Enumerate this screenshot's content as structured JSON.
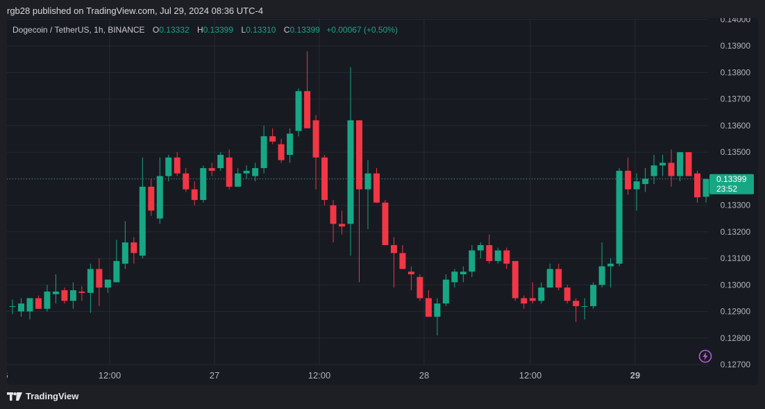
{
  "header": {
    "published_text": "rgb28 published on TradingView.com, Jul 29, 2024 08:36 UTC-4"
  },
  "legend": {
    "symbol": "Dogecoin / TetherUS, 1h, BINANCE",
    "open_label": "O",
    "open": "0.13332",
    "high_label": "H",
    "high": "0.13399",
    "low_label": "L",
    "low": "0.13310",
    "close_label": "C",
    "close": "0.13399",
    "change": "+0.00067 (+0.50%)"
  },
  "footer": {
    "brand": "TradingView"
  },
  "price_badge": {
    "price": "0.13399",
    "countdown": "23:52"
  },
  "colors": {
    "up": "#17a784",
    "down": "#f23645",
    "background": "#181a21",
    "grid": "#262933"
  },
  "icons": [
    "tradingview-logo-icon",
    "lightning-icon"
  ],
  "chart_data": {
    "type": "candlestick",
    "ylim": [
      0.127,
      0.14
    ],
    "y_ticks": [
      "0.12700",
      "0.12800",
      "0.12900",
      "0.13000",
      "0.13100",
      "0.13200",
      "0.13300",
      "0.13400",
      "0.13500",
      "0.13600",
      "0.13700",
      "0.13800",
      "0.13900",
      "0.14000"
    ],
    "x_labels": [
      "6",
      "12:00",
      "27",
      "12:00",
      "28",
      "12:00",
      "29"
    ],
    "current_price": 0.13399,
    "candles": [
      {
        "o": 0.1292,
        "h": 0.12945,
        "l": 0.1289,
        "c": 0.1292
      },
      {
        "o": 0.129,
        "h": 0.1295,
        "l": 0.1288,
        "c": 0.1293
      },
      {
        "o": 0.129,
        "h": 0.1295,
        "l": 0.1287,
        "c": 0.1295
      },
      {
        "o": 0.1295,
        "h": 0.1296,
        "l": 0.1291,
        "c": 0.1291
      },
      {
        "o": 0.1291,
        "h": 0.13,
        "l": 0.129,
        "c": 0.12975
      },
      {
        "o": 0.12965,
        "h": 0.1304,
        "l": 0.1293,
        "c": 0.12975
      },
      {
        "o": 0.1298,
        "h": 0.1299,
        "l": 0.1293,
        "c": 0.1294
      },
      {
        "o": 0.1294,
        "h": 0.1301,
        "l": 0.1291,
        "c": 0.1298
      },
      {
        "o": 0.12975,
        "h": 0.12995,
        "l": 0.1294,
        "c": 0.1297
      },
      {
        "o": 0.1297,
        "h": 0.1308,
        "l": 0.12895,
        "c": 0.1306
      },
      {
        "o": 0.1306,
        "h": 0.131,
        "l": 0.1292,
        "c": 0.1299
      },
      {
        "o": 0.1299,
        "h": 0.1302,
        "l": 0.1297,
        "c": 0.1302
      },
      {
        "o": 0.1301,
        "h": 0.1317,
        "l": 0.1301,
        "c": 0.1309
      },
      {
        "o": 0.1308,
        "h": 0.1324,
        "l": 0.1306,
        "c": 0.1316
      },
      {
        "o": 0.1316,
        "h": 0.1318,
        "l": 0.1308,
        "c": 0.1312
      },
      {
        "o": 0.1311,
        "h": 0.1348,
        "l": 0.131,
        "c": 0.1337
      },
      {
        "o": 0.1337,
        "h": 0.134,
        "l": 0.1326,
        "c": 0.1328
      },
      {
        "o": 0.1325,
        "h": 0.1348,
        "l": 0.1323,
        "c": 0.1341
      },
      {
        "o": 0.1341,
        "h": 0.1349,
        "l": 0.1339,
        "c": 0.1348
      },
      {
        "o": 0.1348,
        "h": 0.135,
        "l": 0.1341,
        "c": 0.1342
      },
      {
        "o": 0.1342,
        "h": 0.1344,
        "l": 0.1335,
        "c": 0.1336
      },
      {
        "o": 0.1336,
        "h": 0.1339,
        "l": 0.133,
        "c": 0.1332
      },
      {
        "o": 0.1332,
        "h": 0.1345,
        "l": 0.1331,
        "c": 0.1344
      },
      {
        "o": 0.1344,
        "h": 0.1346,
        "l": 0.1341,
        "c": 0.1343
      },
      {
        "o": 0.1344,
        "h": 0.135,
        "l": 0.1343,
        "c": 0.1349
      },
      {
        "o": 0.1348,
        "h": 0.1351,
        "l": 0.1336,
        "c": 0.1337
      },
      {
        "o": 0.1337,
        "h": 0.1344,
        "l": 0.1337,
        "c": 0.1342
      },
      {
        "o": 0.1342,
        "h": 0.1345,
        "l": 0.134,
        "c": 0.1343
      },
      {
        "o": 0.1341,
        "h": 0.1346,
        "l": 0.1339,
        "c": 0.1344
      },
      {
        "o": 0.1344,
        "h": 0.136,
        "l": 0.1342,
        "c": 0.1356
      },
      {
        "o": 0.1356,
        "h": 0.1359,
        "l": 0.1353,
        "c": 0.1354
      },
      {
        "o": 0.1353,
        "h": 0.1355,
        "l": 0.1346,
        "c": 0.1347
      },
      {
        "o": 0.1349,
        "h": 0.1359,
        "l": 0.1346,
        "c": 0.1357
      },
      {
        "o": 0.1358,
        "h": 0.1374,
        "l": 0.1356,
        "c": 0.1373
      },
      {
        "o": 0.1373,
        "h": 0.1388,
        "l": 0.1359,
        "c": 0.1359
      },
      {
        "o": 0.1362,
        "h": 0.1364,
        "l": 0.1336,
        "c": 0.1348
      },
      {
        "o": 0.1348,
        "h": 0.1349,
        "l": 0.133,
        "c": 0.1332
      },
      {
        "o": 0.133,
        "h": 0.1332,
        "l": 0.1316,
        "c": 0.1323
      },
      {
        "o": 0.1323,
        "h": 0.1328,
        "l": 0.1319,
        "c": 0.1322
      },
      {
        "o": 0.1323,
        "h": 0.1382,
        "l": 0.1311,
        "c": 0.1362
      },
      {
        "o": 0.1362,
        "h": 0.1362,
        "l": 0.1301,
        "c": 0.1336
      },
      {
        "o": 0.1336,
        "h": 0.1347,
        "l": 0.1321,
        "c": 0.1342
      },
      {
        "o": 0.1342,
        "h": 0.1344,
        "l": 0.1331,
        "c": 0.1331
      },
      {
        "o": 0.1331,
        "h": 0.1332,
        "l": 0.1315,
        "c": 0.1315
      },
      {
        "o": 0.1315,
        "h": 0.1318,
        "l": 0.1299,
        "c": 0.1312
      },
      {
        "o": 0.1312,
        "h": 0.1315,
        "l": 0.1306,
        "c": 0.1306
      },
      {
        "o": 0.1305,
        "h": 0.1307,
        "l": 0.1298,
        "c": 0.1304
      },
      {
        "o": 0.1303,
        "h": 0.1304,
        "l": 0.1294,
        "c": 0.1295
      },
      {
        "o": 0.1295,
        "h": 0.1298,
        "l": 0.1288,
        "c": 0.1288
      },
      {
        "o": 0.1288,
        "h": 0.1295,
        "l": 0.1281,
        "c": 0.1293
      },
      {
        "o": 0.1293,
        "h": 0.1304,
        "l": 0.1292,
        "c": 0.1302
      },
      {
        "o": 0.1301,
        "h": 0.1306,
        "l": 0.1299,
        "c": 0.1305
      },
      {
        "o": 0.1304,
        "h": 0.1307,
        "l": 0.1301,
        "c": 0.1305
      },
      {
        "o": 0.1305,
        "h": 0.1315,
        "l": 0.1303,
        "c": 0.1313
      },
      {
        "o": 0.1313,
        "h": 0.1316,
        "l": 0.131,
        "c": 0.1315
      },
      {
        "o": 0.1315,
        "h": 0.1319,
        "l": 0.1308,
        "c": 0.1309
      },
      {
        "o": 0.1309,
        "h": 0.1314,
        "l": 0.1308,
        "c": 0.1313
      },
      {
        "o": 0.1313,
        "h": 0.1314,
        "l": 0.1306,
        "c": 0.1308
      },
      {
        "o": 0.1309,
        "h": 0.1309,
        "l": 0.1294,
        "c": 0.1295
      },
      {
        "o": 0.1295,
        "h": 0.1296,
        "l": 0.1291,
        "c": 0.1293
      },
      {
        "o": 0.1295,
        "h": 0.1301,
        "l": 0.1293,
        "c": 0.1294
      },
      {
        "o": 0.1294,
        "h": 0.1301,
        "l": 0.1293,
        "c": 0.1299
      },
      {
        "o": 0.1299,
        "h": 0.1308,
        "l": 0.1299,
        "c": 0.1306
      },
      {
        "o": 0.1306,
        "h": 0.1308,
        "l": 0.1298,
        "c": 0.1299
      },
      {
        "o": 0.1299,
        "h": 0.13,
        "l": 0.1293,
        "c": 0.1294
      },
      {
        "o": 0.1294,
        "h": 0.1295,
        "l": 0.1286,
        "c": 0.1292
      },
      {
        "o": 0.1292,
        "h": 0.1295,
        "l": 0.1287,
        "c": 0.1292
      },
      {
        "o": 0.1292,
        "h": 0.1301,
        "l": 0.1291,
        "c": 0.13
      },
      {
        "o": 0.13,
        "h": 0.1316,
        "l": 0.1299,
        "c": 0.1307
      },
      {
        "o": 0.1307,
        "h": 0.131,
        "l": 0.1299,
        "c": 0.1308
      },
      {
        "o": 0.1308,
        "h": 0.1344,
        "l": 0.1307,
        "c": 0.1343
      },
      {
        "o": 0.1343,
        "h": 0.1348,
        "l": 0.1334,
        "c": 0.1336
      },
      {
        "o": 0.1336,
        "h": 0.1342,
        "l": 0.1328,
        "c": 0.1339
      },
      {
        "o": 0.1338,
        "h": 0.1344,
        "l": 0.1335,
        "c": 0.134
      },
      {
        "o": 0.1341,
        "h": 0.1349,
        "l": 0.1338,
        "c": 0.1345
      },
      {
        "o": 0.1345,
        "h": 0.1349,
        "l": 0.1341,
        "c": 0.1346
      },
      {
        "o": 0.1346,
        "h": 0.1351,
        "l": 0.1337,
        "c": 0.1341
      },
      {
        "o": 0.1341,
        "h": 0.135,
        "l": 0.1339,
        "c": 0.135
      },
      {
        "o": 0.135,
        "h": 0.135,
        "l": 0.1341,
        "c": 0.1341
      },
      {
        "o": 0.1342,
        "h": 0.1343,
        "l": 0.1331,
        "c": 0.1333
      },
      {
        "o": 0.13332,
        "h": 0.13399,
        "l": 0.1331,
        "c": 0.13399
      }
    ]
  }
}
